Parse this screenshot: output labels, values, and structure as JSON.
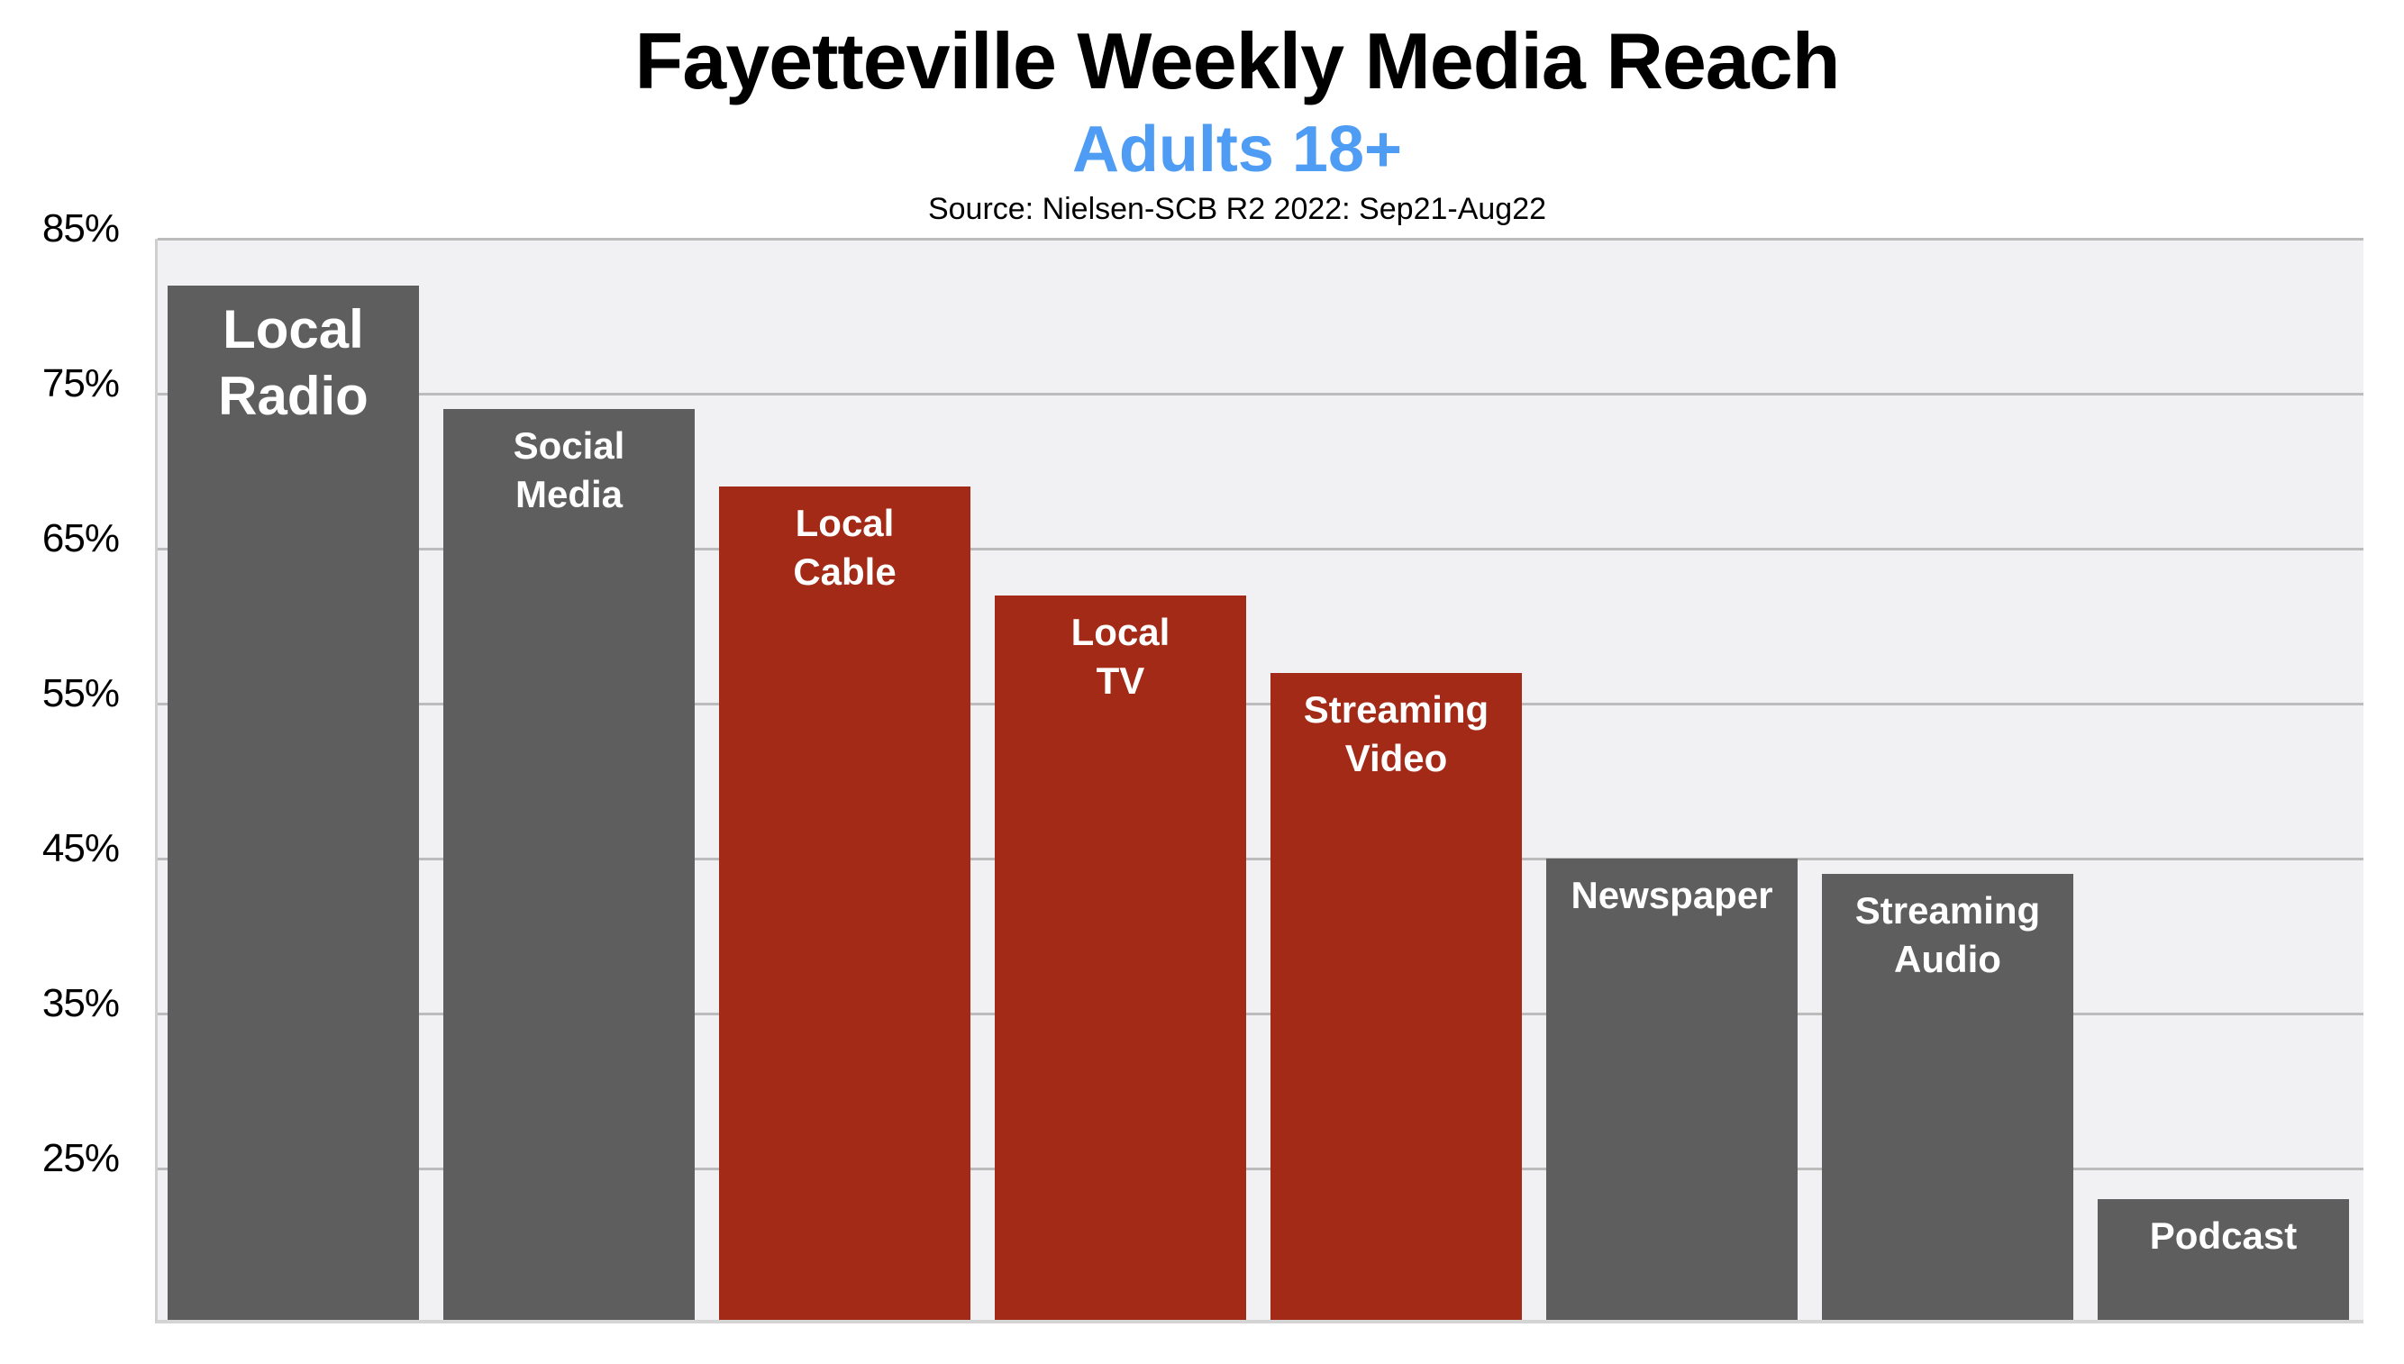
{
  "header": {
    "title": "Fayetteville Weekly Media Reach",
    "subtitle": "Adults 18+",
    "source": "Source: Nielsen-SCB R2 2022: Sep21-Aug22"
  },
  "colors": {
    "gray_bar": "#5e5e5e",
    "red_bar": "#a32a17",
    "subtitle": "#4e9cf4",
    "plot_bg": "#f1f1f3",
    "gridline": "#bcbcbc"
  },
  "y_axis": {
    "min": 15,
    "max": 85,
    "ticks": [
      {
        "value": 85,
        "label": "85%"
      },
      {
        "value": 75,
        "label": "75%"
      },
      {
        "value": 65,
        "label": "65%"
      },
      {
        "value": 55,
        "label": "55%"
      },
      {
        "value": 45,
        "label": "45%"
      },
      {
        "value": 35,
        "label": "35%"
      },
      {
        "value": 25,
        "label": "25%"
      }
    ]
  },
  "bars": [
    {
      "label": "Local\nRadio",
      "value": 82,
      "color": "gray",
      "size": "big"
    },
    {
      "label": "Social\nMedia",
      "value": 74,
      "color": "gray",
      "size": "normal"
    },
    {
      "label": "Local\nCable",
      "value": 69,
      "color": "red",
      "size": "normal"
    },
    {
      "label": "Local\nTV",
      "value": 62,
      "color": "red",
      "size": "normal"
    },
    {
      "label": "Streaming\nVideo",
      "value": 57,
      "color": "red",
      "size": "normal"
    },
    {
      "label": "Newspaper",
      "value": 45,
      "color": "gray",
      "size": "normal"
    },
    {
      "label": "Streaming\nAudio",
      "value": 44,
      "color": "gray",
      "size": "normal"
    },
    {
      "label": "Podcast",
      "value": 23,
      "color": "gray",
      "size": "normal"
    }
  ],
  "chart_data": {
    "type": "bar",
    "title": "Fayetteville Weekly Media Reach",
    "subtitle": "Adults 18+",
    "annotation": "Source: Nielsen-SCB R2 2022: Sep21-Aug22",
    "categories": [
      "Local Radio",
      "Social Media",
      "Local Cable",
      "Local TV",
      "Streaming Video",
      "Newspaper",
      "Streaming Audio",
      "Podcast"
    ],
    "values": [
      82,
      74,
      69,
      62,
      57,
      45,
      44,
      23
    ],
    "xlabel": "",
    "ylabel": "",
    "ylim": [
      15,
      85
    ],
    "yticks": [
      "25%",
      "35%",
      "45%",
      "55%",
      "65%",
      "75%",
      "85%"
    ],
    "grid": true,
    "legend": null,
    "bar_colors": [
      "#5e5e5e",
      "#5e5e5e",
      "#a32a17",
      "#a32a17",
      "#a32a17",
      "#5e5e5e",
      "#5e5e5e",
      "#5e5e5e"
    ],
    "labels_inside_bars": true
  }
}
